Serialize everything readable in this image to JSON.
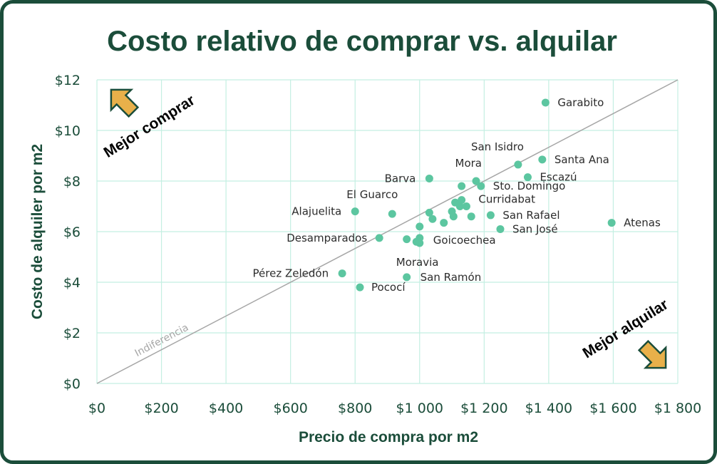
{
  "chart_data": {
    "type": "scatter",
    "title": "Costo relativo de comprar vs. alquilar",
    "xlabel": "Precio de compra por m2",
    "ylabel": "Costo de alquiler por m2",
    "xlim": [
      0,
      1800
    ],
    "ylim": [
      0,
      12
    ],
    "x_ticks": [
      "$0",
      "$200",
      "$400",
      "$600",
      "$800",
      "$1 000",
      "$1 200",
      "$1 400",
      "$1 600",
      "$1 800"
    ],
    "y_ticks": [
      "$0",
      "$2",
      "$4",
      "$6",
      "$8",
      "$10",
      "$12"
    ],
    "x_tick_values": [
      0,
      200,
      400,
      600,
      800,
      1000,
      1200,
      1400,
      1600,
      1800
    ],
    "y_tick_values": [
      0,
      2,
      4,
      6,
      8,
      10,
      12
    ],
    "grid": true,
    "point_color": "#5cc6a0",
    "grid_color": "#c4efe2",
    "reference_line": {
      "label": "Indiferencia",
      "x": [
        0,
        1800
      ],
      "y": [
        0,
        12
      ],
      "color": "#a6a6a6"
    },
    "annotations": [
      {
        "text": "Mejor comprar",
        "position": "top-left",
        "arrow": "up-left"
      },
      {
        "text": "Mejor alquilar",
        "position": "bottom-right",
        "arrow": "down-right"
      }
    ],
    "arrow_fill": "#e8b04a",
    "arrow_stroke": "#1b4d3a",
    "points": [
      {
        "x": 1390,
        "y": 11.1,
        "label": "Garabito"
      },
      {
        "x": 1305,
        "y": 8.65,
        "label": "San Isidro"
      },
      {
        "x": 1380,
        "y": 8.85,
        "label": "Santa Ana"
      },
      {
        "x": 1175,
        "y": 8.0,
        "label": "Mora"
      },
      {
        "x": 1335,
        "y": 8.15,
        "label": "Escazú"
      },
      {
        "x": 1030,
        "y": 8.1,
        "label": "Barva"
      },
      {
        "x": 1190,
        "y": 7.8,
        "label": "Sto. Domingo"
      },
      {
        "x": 1130,
        "y": 7.8,
        "label": ""
      },
      {
        "x": 915,
        "y": 6.7,
        "label": "El Guarco"
      },
      {
        "x": 800,
        "y": 6.8,
        "label": "Alajuelita"
      },
      {
        "x": 1145,
        "y": 7.0,
        "label": "Curridabat"
      },
      {
        "x": 1110,
        "y": 7.15,
        "label": ""
      },
      {
        "x": 1130,
        "y": 7.25,
        "label": ""
      },
      {
        "x": 1125,
        "y": 7.0,
        "label": ""
      },
      {
        "x": 1100,
        "y": 6.8,
        "label": ""
      },
      {
        "x": 1030,
        "y": 6.75,
        "label": ""
      },
      {
        "x": 1220,
        "y": 6.65,
        "label": "San Rafael"
      },
      {
        "x": 1160,
        "y": 6.6,
        "label": ""
      },
      {
        "x": 1040,
        "y": 6.5,
        "label": ""
      },
      {
        "x": 1105,
        "y": 6.6,
        "label": ""
      },
      {
        "x": 1075,
        "y": 6.35,
        "label": ""
      },
      {
        "x": 1000,
        "y": 6.2,
        "label": ""
      },
      {
        "x": 1595,
        "y": 6.35,
        "label": "Atenas"
      },
      {
        "x": 1250,
        "y": 6.1,
        "label": "San José"
      },
      {
        "x": 875,
        "y": 5.75,
        "label": "Desamparados"
      },
      {
        "x": 960,
        "y": 5.7,
        "label": ""
      },
      {
        "x": 1000,
        "y": 5.75,
        "label": "Goicoechea"
      },
      {
        "x": 990,
        "y": 5.6,
        "label": ""
      },
      {
        "x": 1000,
        "y": 5.55,
        "label": "Moravia"
      },
      {
        "x": 760,
        "y": 4.35,
        "label": "Pérez Zeledón"
      },
      {
        "x": 960,
        "y": 4.2,
        "label": "San Ramón"
      },
      {
        "x": 815,
        "y": 3.8,
        "label": "Pococí"
      }
    ]
  }
}
